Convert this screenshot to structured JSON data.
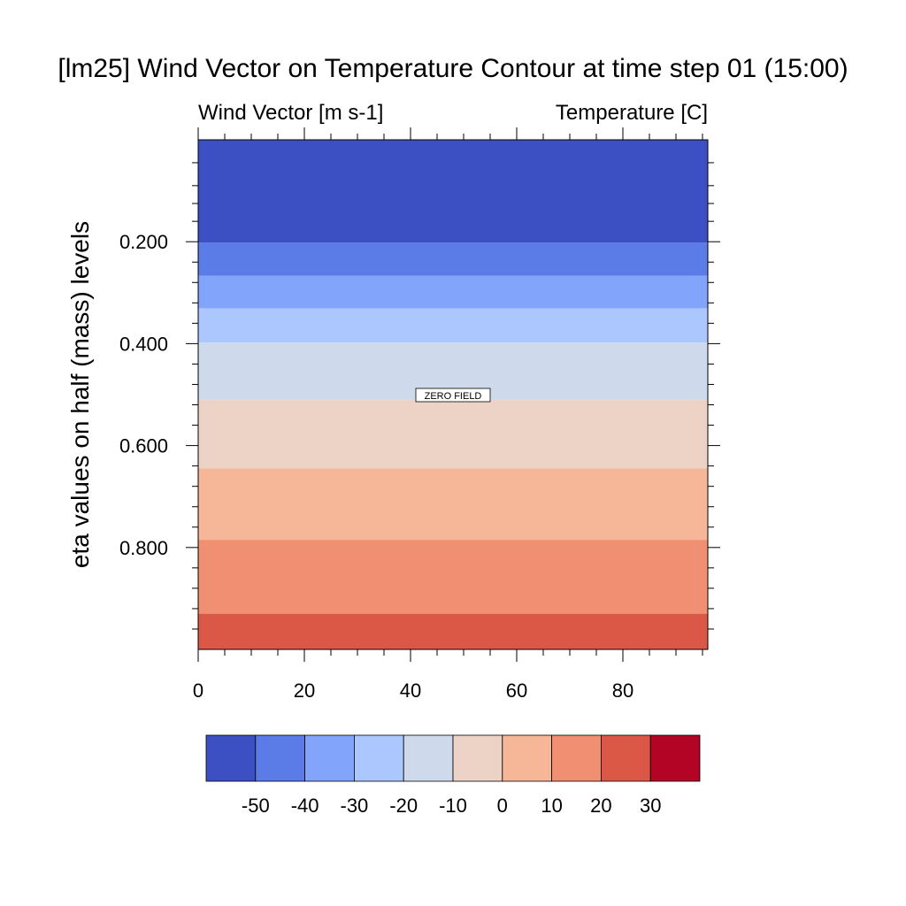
{
  "chart_data": {
    "type": "heatmap",
    "title": "[lm25] Wind Vector on Temperature Contour at time step 01 (15:00)",
    "left_subtitle": "Wind Vector [m s-1]",
    "right_subtitle": "Temperature [C]",
    "ylabel": "eta values on half (mass) levels",
    "xlabel": "",
    "annotation": "ZERO FIELD",
    "xlim": [
      0,
      96
    ],
    "ylim": [
      0,
      1
    ],
    "y_inverted": true,
    "x_ticks": [
      0,
      20,
      40,
      60,
      80
    ],
    "x_tick_labels": [
      "0",
      "20",
      "40",
      "60",
      "80"
    ],
    "x_minor_step": 5,
    "y_major_ticks": [
      0.2,
      0.4,
      0.6,
      0.8
    ],
    "y_tick_labels": [
      "0.200",
      "0.400",
      "0.600",
      "0.800"
    ],
    "y_minor_ticks": [
      0.045,
      0.09,
      0.125,
      0.16,
      0.24,
      0.28,
      0.32,
      0.36,
      0.44,
      0.48,
      0.52,
      0.56,
      0.64,
      0.68,
      0.72,
      0.76,
      0.84,
      0.88,
      0.92,
      0.96
    ],
    "bands": [
      {
        "eta_top": 0.0,
        "eta_bottom": 0.202,
        "color": "#3d50c3"
      },
      {
        "eta_top": 0.202,
        "eta_bottom": 0.267,
        "color": "#5b7ce6"
      },
      {
        "eta_top": 0.267,
        "eta_bottom": 0.331,
        "color": "#82a5fb"
      },
      {
        "eta_top": 0.331,
        "eta_bottom": 0.398,
        "color": "#abc7fe"
      },
      {
        "eta_top": 0.398,
        "eta_bottom": 0.51,
        "color": "#cedaeb"
      },
      {
        "eta_top": 0.51,
        "eta_bottom": 0.645,
        "color": "#ecd3c5"
      },
      {
        "eta_top": 0.645,
        "eta_bottom": 0.785,
        "color": "#f5b798"
      },
      {
        "eta_top": 0.785,
        "eta_bottom": 0.93,
        "color": "#f08f71"
      },
      {
        "eta_top": 0.93,
        "eta_bottom": 1.0,
        "color": "#db5847"
      }
    ],
    "colorbar": {
      "levels": [
        "-50",
        "-40",
        "-30",
        "-20",
        "-10",
        "0",
        "10",
        "20",
        "30"
      ],
      "colors": [
        "#3d50c3",
        "#5b7ce6",
        "#82a5fb",
        "#abc7fe",
        "#cedaeb",
        "#ecd3c5",
        "#f5b798",
        "#f08f71",
        "#db5847",
        "#b40426"
      ]
    }
  }
}
